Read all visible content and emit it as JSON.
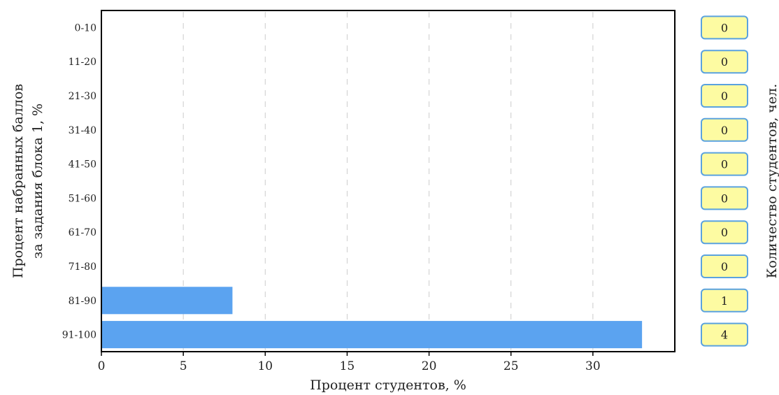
{
  "chart_data": {
    "type": "bar",
    "orientation": "horizontal",
    "categories": [
      "0-10",
      "11-20",
      "21-30",
      "31-40",
      "41-50",
      "51-60",
      "61-70",
      "71-80",
      "81-90",
      "91-100"
    ],
    "values": [
      0,
      0,
      0,
      0,
      0,
      0,
      0,
      0,
      8,
      33
    ],
    "counts": [
      "0",
      "0",
      "0",
      "0",
      "0",
      "0",
      "0",
      "0",
      "1",
      "4"
    ],
    "xlabel": "Процент студентов, %",
    "ylabel_lines": [
      "Процент набранных баллов",
      "за задания блока 1, %"
    ],
    "right_label": "Количество студентов, чел.",
    "xlim": [
      0,
      35
    ],
    "x_ticks": [
      "0",
      "5",
      "10",
      "15",
      "20",
      "25",
      "30"
    ],
    "x_tick_values": [
      0,
      5,
      10,
      15,
      20,
      25,
      30
    ],
    "grid": "vertical-dashed",
    "bar_color": "#5ba3f0",
    "badge_fill": "#fdfba2",
    "badge_border": "#5aa2df"
  }
}
